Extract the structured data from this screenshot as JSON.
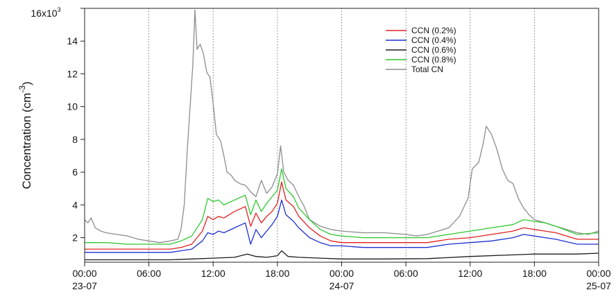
{
  "chart_data": {
    "type": "line",
    "y_multiplier_label": "16x10",
    "y_multiplier_exp": "3",
    "ylabel": "Concentration (cm",
    "ylabel_exp": "-3",
    "ylabel_close": ")",
    "ylim": [
      0.5,
      16
    ],
    "yticks": [
      2,
      4,
      6,
      8,
      10,
      12,
      14,
      16
    ],
    "ytick_labels": [
      "2",
      "4",
      "6",
      "8",
      "10",
      "12",
      "14",
      ""
    ],
    "xlim_hours": [
      0,
      48
    ],
    "xticks": [
      {
        "hour": 0,
        "time": "00:00",
        "date": "23-07"
      },
      {
        "hour": 6,
        "time": "06:00",
        "date": ""
      },
      {
        "hour": 12,
        "time": "12:00",
        "date": ""
      },
      {
        "hour": 18,
        "time": "18:00",
        "date": ""
      },
      {
        "hour": 24,
        "time": "00:00",
        "date": "24-07"
      },
      {
        "hour": 30,
        "time": "06:00",
        "date": ""
      },
      {
        "hour": 36,
        "time": "12:00",
        "date": ""
      },
      {
        "hour": 42,
        "time": "18:00",
        "date": ""
      },
      {
        "hour": 48,
        "time": "00:00",
        "date": "25-07"
      }
    ],
    "vertical_gridlines_hours": [
      6,
      12,
      18,
      24,
      30,
      36,
      42
    ],
    "legend_position": "top-right",
    "series": [
      {
        "name": "Total CN",
        "color": "#8c8c8c",
        "points": [
          [
            0,
            3.1
          ],
          [
            0.3,
            2.9
          ],
          [
            0.6,
            3.2
          ],
          [
            1,
            2.6
          ],
          [
            1.5,
            2.4
          ],
          [
            2,
            2.3
          ],
          [
            3,
            2.2
          ],
          [
            4,
            2.1
          ],
          [
            5,
            1.9
          ],
          [
            6,
            1.8
          ],
          [
            7,
            1.7
          ],
          [
            8,
            1.8
          ],
          [
            8.7,
            1.9
          ],
          [
            9,
            2.5
          ],
          [
            9.3,
            4
          ],
          [
            9.6,
            7.5
          ],
          [
            9.9,
            10.5
          ],
          [
            10.1,
            12.5
          ],
          [
            10.3,
            15.9
          ],
          [
            10.5,
            13.5
          ],
          [
            10.8,
            13.8
          ],
          [
            11.1,
            13.2
          ],
          [
            11.4,
            12.1
          ],
          [
            11.7,
            11.8
          ],
          [
            12,
            10.2
          ],
          [
            12.3,
            8.3
          ],
          [
            12.7,
            7.9
          ],
          [
            13,
            7
          ],
          [
            13.3,
            6
          ],
          [
            13.7,
            5.8
          ],
          [
            14,
            5.5
          ],
          [
            14.5,
            5.3
          ],
          [
            15,
            5.2
          ],
          [
            15.5,
            4.8
          ],
          [
            16,
            4.5
          ],
          [
            16.5,
            5.5
          ],
          [
            17,
            4.7
          ],
          [
            17.5,
            5.1
          ],
          [
            18,
            5.9
          ],
          [
            18.3,
            7.6
          ],
          [
            18.6,
            6
          ],
          [
            19,
            5.5
          ],
          [
            19.5,
            5.2
          ],
          [
            20,
            4.5
          ],
          [
            20.5,
            3.9
          ],
          [
            21,
            3.1
          ],
          [
            22,
            2.7
          ],
          [
            23,
            2.5
          ],
          [
            24,
            2.4
          ],
          [
            26,
            2.3
          ],
          [
            28,
            2.3
          ],
          [
            30,
            2.2
          ],
          [
            31,
            2.1
          ],
          [
            32,
            2.2
          ],
          [
            33,
            2.4
          ],
          [
            34,
            2.6
          ],
          [
            35,
            3.3
          ],
          [
            35.8,
            4.4
          ],
          [
            36.2,
            6.2
          ],
          [
            36.8,
            6.6
          ],
          [
            37.2,
            7.7
          ],
          [
            37.5,
            8.8
          ],
          [
            38,
            8.3
          ],
          [
            38.5,
            7.4
          ],
          [
            39,
            6.2
          ],
          [
            39.5,
            5.5
          ],
          [
            40,
            5.3
          ],
          [
            40.5,
            4.4
          ],
          [
            41,
            3.8
          ],
          [
            41.5,
            3.4
          ],
          [
            42,
            3.1
          ],
          [
            43,
            2.9
          ],
          [
            44,
            2.7
          ],
          [
            45,
            2.5
          ],
          [
            46,
            2.3
          ],
          [
            47,
            2.2
          ],
          [
            48,
            2.4
          ]
        ]
      },
      {
        "name": "CCN (0.8%)",
        "color": "#2ec82e",
        "points": [
          [
            0,
            1.7
          ],
          [
            2,
            1.7
          ],
          [
            4,
            1.6
          ],
          [
            6,
            1.6
          ],
          [
            8,
            1.6
          ],
          [
            9,
            1.8
          ],
          [
            10,
            2.1
          ],
          [
            11,
            3.1
          ],
          [
            11.5,
            4.4
          ],
          [
            12,
            4.2
          ],
          [
            12.5,
            4.3
          ],
          [
            13,
            4
          ],
          [
            14,
            4.3
          ],
          [
            15,
            4.6
          ],
          [
            15.5,
            3.4
          ],
          [
            16,
            4.3
          ],
          [
            16.5,
            3.6
          ],
          [
            17,
            4.1
          ],
          [
            17.5,
            4.5
          ],
          [
            18,
            4.9
          ],
          [
            18.4,
            6.2
          ],
          [
            18.8,
            5
          ],
          [
            19.5,
            4.5
          ],
          [
            20,
            3.8
          ],
          [
            21,
            3.1
          ],
          [
            22,
            2.5
          ],
          [
            23,
            2.2
          ],
          [
            24,
            2.1
          ],
          [
            26,
            2
          ],
          [
            28,
            2
          ],
          [
            30,
            2
          ],
          [
            32,
            2
          ],
          [
            34,
            2.2
          ],
          [
            36,
            2.4
          ],
          [
            38,
            2.6
          ],
          [
            40,
            2.8
          ],
          [
            41,
            3.1
          ],
          [
            42,
            3
          ],
          [
            43,
            2.9
          ],
          [
            44,
            2.7
          ],
          [
            46,
            2.2
          ],
          [
            48,
            2.3
          ]
        ]
      },
      {
        "name": "CCN (0.2%)",
        "color": "#e02020",
        "points": [
          [
            0,
            1.3
          ],
          [
            2,
            1.3
          ],
          [
            4,
            1.3
          ],
          [
            6,
            1.3
          ],
          [
            8,
            1.3
          ],
          [
            9,
            1.4
          ],
          [
            10,
            1.6
          ],
          [
            11,
            2.4
          ],
          [
            11.5,
            3.3
          ],
          [
            12,
            3.1
          ],
          [
            12.5,
            3.3
          ],
          [
            13,
            3.2
          ],
          [
            14,
            3.6
          ],
          [
            15,
            3.9
          ],
          [
            15.5,
            2.7
          ],
          [
            16,
            3.5
          ],
          [
            16.5,
            2.9
          ],
          [
            17,
            3.3
          ],
          [
            17.5,
            3.6
          ],
          [
            18,
            4.1
          ],
          [
            18.4,
            5.4
          ],
          [
            18.8,
            4.3
          ],
          [
            19.5,
            3.9
          ],
          [
            20,
            3.3
          ],
          [
            21,
            2.6
          ],
          [
            22,
            2.1
          ],
          [
            23,
            1.8
          ],
          [
            24,
            1.7
          ],
          [
            26,
            1.7
          ],
          [
            28,
            1.7
          ],
          [
            30,
            1.7
          ],
          [
            32,
            1.7
          ],
          [
            34,
            1.9
          ],
          [
            36,
            2
          ],
          [
            38,
            2.2
          ],
          [
            40,
            2.4
          ],
          [
            41,
            2.6
          ],
          [
            42,
            2.5
          ],
          [
            43,
            2.4
          ],
          [
            44,
            2.3
          ],
          [
            46,
            1.9
          ],
          [
            48,
            1.9
          ]
        ]
      },
      {
        "name": "CCN (0.4%)",
        "color": "#1c2fd0",
        "points": [
          [
            0,
            1.1
          ],
          [
            2,
            1.1
          ],
          [
            4,
            1.1
          ],
          [
            6,
            1.1
          ],
          [
            8,
            1.1
          ],
          [
            9,
            1.2
          ],
          [
            10,
            1.3
          ],
          [
            11,
            1.8
          ],
          [
            11.5,
            2.3
          ],
          [
            12,
            2.2
          ],
          [
            12.5,
            2.4
          ],
          [
            13,
            2.3
          ],
          [
            14,
            2.6
          ],
          [
            15,
            2.9
          ],
          [
            15.5,
            1.6
          ],
          [
            16,
            2.5
          ],
          [
            16.5,
            2
          ],
          [
            17,
            2.4
          ],
          [
            17.5,
            2.8
          ],
          [
            18,
            3.3
          ],
          [
            18.4,
            4.3
          ],
          [
            18.8,
            3.4
          ],
          [
            19.5,
            3
          ],
          [
            20,
            2.6
          ],
          [
            21,
            2
          ],
          [
            22,
            1.7
          ],
          [
            23,
            1.5
          ],
          [
            24,
            1.5
          ],
          [
            26,
            1.4
          ],
          [
            28,
            1.4
          ],
          [
            30,
            1.4
          ],
          [
            32,
            1.4
          ],
          [
            34,
            1.6
          ],
          [
            36,
            1.7
          ],
          [
            38,
            1.8
          ],
          [
            40,
            2
          ],
          [
            41,
            2.2
          ],
          [
            42,
            2.1
          ],
          [
            43,
            2
          ],
          [
            44,
            1.9
          ],
          [
            46,
            1.6
          ],
          [
            48,
            1.6
          ]
        ]
      },
      {
        "name": "CCN (0.6%)",
        "color": "#1a1a1a",
        "points": [
          [
            0,
            0.65
          ],
          [
            4,
            0.65
          ],
          [
            8,
            0.65
          ],
          [
            10,
            0.7
          ],
          [
            12,
            0.75
          ],
          [
            14,
            0.8
          ],
          [
            15.2,
            1
          ],
          [
            16,
            0.85
          ],
          [
            17,
            0.8
          ],
          [
            18,
            0.9
          ],
          [
            18.4,
            1.2
          ],
          [
            19,
            0.85
          ],
          [
            20,
            0.8
          ],
          [
            22,
            0.75
          ],
          [
            24,
            0.7
          ],
          [
            28,
            0.7
          ],
          [
            32,
            0.72
          ],
          [
            36,
            0.85
          ],
          [
            40,
            0.95
          ],
          [
            42,
            1
          ],
          [
            44,
            1
          ],
          [
            46,
            1
          ],
          [
            48,
            1.05
          ]
        ]
      }
    ],
    "legend_order": [
      "CCN (0.2%)",
      "CCN (0.4%)",
      "CCN (0.6%)",
      "CCN (0.8%)",
      "Total CN"
    ]
  }
}
